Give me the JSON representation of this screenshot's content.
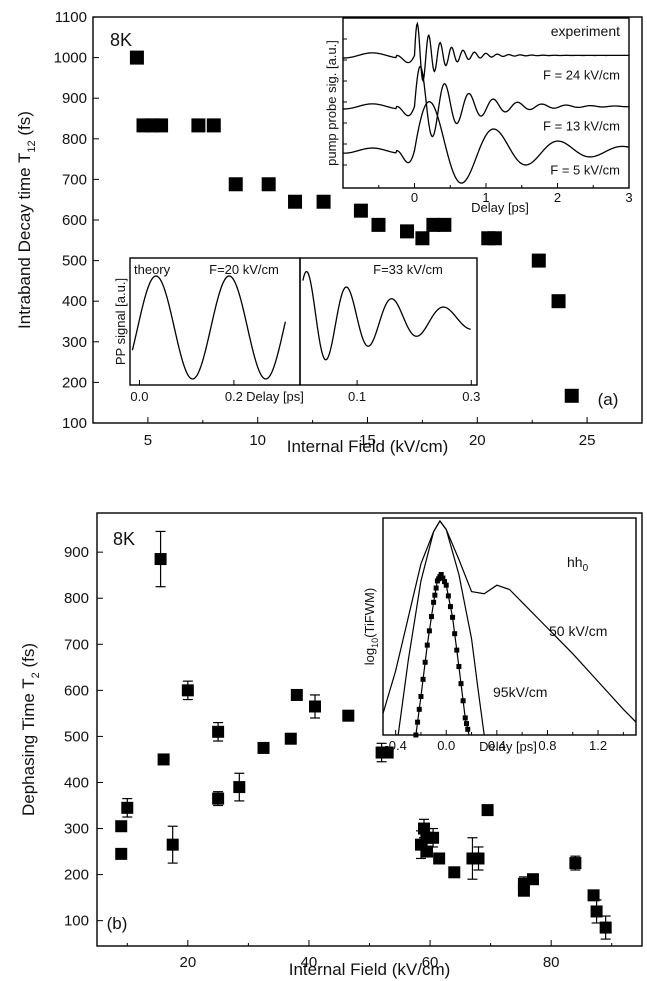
{
  "chart_data": [
    {
      "type": "scatter",
      "panel_label": "(a)",
      "temperature_label": "8K",
      "xlabel": "Internal Field (kV/cm)",
      "ylabel": "Intraband Decay time T",
      "ylabel_sub": "12",
      "ylabel_unit": "(fs)",
      "xlim": [
        2.5,
        27.5
      ],
      "ylim": [
        100,
        1100
      ],
      "xticks": [
        5,
        10,
        15,
        20,
        25
      ],
      "yticks": [
        100,
        200,
        300,
        400,
        500,
        600,
        700,
        800,
        900,
        1000,
        1100
      ],
      "x": [
        4.5,
        4.8,
        5.2,
        5.6,
        7.3,
        8.0,
        9.0,
        10.5,
        11.7,
        13.0,
        14.7,
        15.5,
        16.8,
        17.5,
        18.0,
        18.5,
        20.5,
        20.8,
        22.8,
        23.7,
        24.3
      ],
      "y": [
        1000,
        833,
        833,
        833,
        833,
        833,
        688,
        688,
        645,
        645,
        623,
        588,
        572,
        555,
        588,
        588,
        555,
        555,
        500,
        400,
        167
      ],
      "insets": [
        {
          "name": "experiment",
          "title": "experiment",
          "xlabel": "Delay [ps]",
          "ylabel": "pump probe sig. [a.u.]",
          "xlim": [
            -1,
            3
          ],
          "xticks": [
            0,
            1,
            2,
            3
          ],
          "traces": [
            {
              "label": "F = 24 kV/cm",
              "offset": 0.78,
              "amp": 0.21,
              "period": 0.16,
              "decay": 0.35
            },
            {
              "label": "F = 13 kV/cm",
              "offset": 0.48,
              "amp": 0.27,
              "period": 0.34,
              "decay": 0.6
            },
            {
              "label": "F =   5 kV/cm",
              "offset": 0.22,
              "amp": 0.35,
              "period": 0.9,
              "decay": 1.1
            }
          ]
        },
        {
          "name": "theory-20",
          "title": "theory",
          "field_label": "F=20 kV/cm",
          "xlabel": "Delay [ps]",
          "ylabel": "PP signal [a.u.]",
          "xlim": [
            -0.02,
            0.34
          ],
          "xticks": [
            0.0,
            0.2
          ],
          "period": 0.155
        },
        {
          "name": "theory-33",
          "field_label": "F=33 kV/cm",
          "xlim": [
            0.0,
            0.31
          ],
          "xticks": [
            0.1,
            0.3
          ],
          "period": 0.065
        }
      ]
    },
    {
      "type": "scatter",
      "panel_label": "(b)",
      "temperature_label": "8K",
      "xlabel": "Internal Field (kV/cm)",
      "ylabel": "Dephasing Time T",
      "ylabel_sub": "2",
      "ylabel_unit": "(fs)",
      "xlim": [
        5,
        95
      ],
      "ylim": [
        45,
        985
      ],
      "xticks": [
        20,
        40,
        60,
        80
      ],
      "yticks": [
        100,
        200,
        300,
        400,
        500,
        600,
        700,
        800,
        900
      ],
      "points": [
        {
          "x": 9.0,
          "y": 245,
          "err": 0
        },
        {
          "x": 9.0,
          "y": 305,
          "err": 0
        },
        {
          "x": 10.0,
          "y": 345,
          "err": 20
        },
        {
          "x": 15.5,
          "y": 885,
          "err": 60
        },
        {
          "x": 16.0,
          "y": 450,
          "err": 0
        },
        {
          "x": 17.5,
          "y": 265,
          "err": 40
        },
        {
          "x": 20.0,
          "y": 600,
          "err": 20
        },
        {
          "x": 25.0,
          "y": 510,
          "err": 20
        },
        {
          "x": 25.0,
          "y": 365,
          "err": 15
        },
        {
          "x": 28.5,
          "y": 390,
          "err": 30
        },
        {
          "x": 32.5,
          "y": 475,
          "err": 0
        },
        {
          "x": 37.0,
          "y": 495,
          "err": 0
        },
        {
          "x": 38.0,
          "y": 590,
          "err": 0
        },
        {
          "x": 41.0,
          "y": 565,
          "err": 25
        },
        {
          "x": 46.5,
          "y": 545,
          "err": 0
        },
        {
          "x": 52.0,
          "y": 465,
          "err": 20
        },
        {
          "x": 53.0,
          "y": 465,
          "err": 0
        },
        {
          "x": 58.5,
          "y": 265,
          "err": 30
        },
        {
          "x": 59.0,
          "y": 300,
          "err": 20
        },
        {
          "x": 59.5,
          "y": 280,
          "err": 20
        },
        {
          "x": 59.5,
          "y": 250,
          "err": 0
        },
        {
          "x": 60.5,
          "y": 280,
          "err": 20
        },
        {
          "x": 61.5,
          "y": 235,
          "err": 0
        },
        {
          "x": 64.0,
          "y": 205,
          "err": 0
        },
        {
          "x": 67.0,
          "y": 235,
          "err": 45
        },
        {
          "x": 68.0,
          "y": 235,
          "err": 25
        },
        {
          "x": 69.5,
          "y": 340,
          "err": 0
        },
        {
          "x": 75.5,
          "y": 180,
          "err": 15
        },
        {
          "x": 75.5,
          "y": 165,
          "err": 0
        },
        {
          "x": 77.0,
          "y": 190,
          "err": 0
        },
        {
          "x": 84.0,
          "y": 225,
          "err": 15
        },
        {
          "x": 87.0,
          "y": 155,
          "err": 0
        },
        {
          "x": 87.5,
          "y": 120,
          "err": 25
        },
        {
          "x": 89.0,
          "y": 85,
          "err": 25
        }
      ],
      "inset": {
        "name": "tifwm",
        "xlabel": "Delay [ps]",
        "ylabel": "log",
        "ylabel_sub": "10",
        "ylabel_rest": "(TiFWM)",
        "xlim": [
          -0.5,
          1.5
        ],
        "xticks": [
          -0.4,
          0.0,
          0.4,
          0.8,
          1.2
        ],
        "state_label": "hh",
        "state_sub": "0",
        "labels": [
          "50 kV/cm",
          "95kV/cm"
        ],
        "curve_50": [
          [
            -0.5,
            0.1
          ],
          [
            -0.4,
            0.3
          ],
          [
            -0.3,
            0.55
          ],
          [
            -0.2,
            0.8
          ],
          [
            -0.1,
            0.95
          ],
          [
            -0.05,
            1.0
          ],
          [
            0.0,
            0.96
          ],
          [
            0.1,
            0.82
          ],
          [
            0.2,
            0.67
          ],
          [
            0.3,
            0.66
          ],
          [
            0.4,
            0.7
          ],
          [
            0.5,
            0.68
          ],
          [
            0.6,
            0.62
          ],
          [
            0.8,
            0.5
          ],
          [
            1.0,
            0.38
          ],
          [
            1.2,
            0.25
          ],
          [
            1.4,
            0.12
          ],
          [
            1.5,
            0.06
          ]
        ],
        "curve_95": [
          [
            -0.38,
            0.0
          ],
          [
            -0.3,
            0.35
          ],
          [
            -0.2,
            0.72
          ],
          [
            -0.1,
            0.95
          ],
          [
            -0.05,
            1.0
          ],
          [
            0.0,
            0.96
          ],
          [
            0.1,
            0.75
          ],
          [
            0.2,
            0.45
          ],
          [
            0.25,
            0.22
          ],
          [
            0.3,
            0.0
          ]
        ],
        "curve_dots": [
          [
            -0.24,
            0.0
          ],
          [
            -0.2,
            0.18
          ],
          [
            -0.15,
            0.42
          ],
          [
            -0.1,
            0.62
          ],
          [
            -0.07,
            0.72
          ],
          [
            -0.04,
            0.75
          ],
          [
            0.0,
            0.7
          ],
          [
            0.05,
            0.55
          ],
          [
            0.1,
            0.32
          ],
          [
            0.15,
            0.08
          ],
          [
            0.18,
            0.0
          ]
        ]
      }
    }
  ]
}
